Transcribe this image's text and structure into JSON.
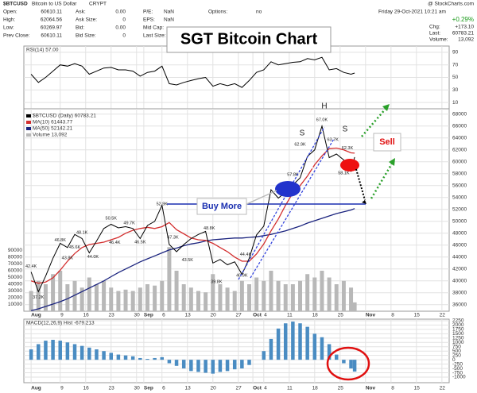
{
  "header": {
    "symbol": "$BTCUSD",
    "name": "Bitcoin to US Dollar",
    "exchange": "CRYPT",
    "copyright": "@ StockCharts.com",
    "date": "Friday 29-Oct-2021 10:21 am",
    "open_label": "Open:",
    "open": "60610.11",
    "high_label": "High:",
    "high": "62064.56",
    "low_label": "Low:",
    "low": "60269.97",
    "prev_label": "Prev Close:",
    "prev": "60610.11",
    "ask_label": "Ask:",
    "ask": "0.00",
    "asksize_label": "Ask Size:",
    "asksize": "0",
    "bid_label": "Bid:",
    "bid": "0.00",
    "bidsize_label": "Bid Size:",
    "bidsize": "0",
    "pe_label": "P/E:",
    "pe": "NaN",
    "eps_label": "EPS:",
    "eps": "NaN",
    "midcap_label": "Mid Cap:",
    "lastsize_label": "Last Size:",
    "options_label": "Options:",
    "options": "no",
    "pct": "+0.29%",
    "chg_label": "Chg:",
    "chg": "+173.10",
    "last_label": "Last:",
    "last": "60783.21",
    "volume_label": "Volume:",
    "volume": "13,092"
  },
  "annotations": {
    "title": "SGT Bitcoin Chart",
    "buy": "Buy More",
    "sell": "Sell",
    "head": "H",
    "shoulder_left": "S",
    "shoulder_right": "S"
  },
  "chart_data": {
    "type": "stock",
    "grid": true,
    "xlim": [
      "2021-07-30",
      "2021-11-24"
    ],
    "xticks": [
      {
        "value": "2021-08-01",
        "label": "Aug"
      },
      {
        "value": "2021-08-09",
        "label": "9"
      },
      {
        "value": "2021-08-16",
        "label": "16"
      },
      {
        "value": "2021-08-23",
        "label": "23"
      },
      {
        "value": "2021-08-30",
        "label": "30"
      },
      {
        "value": "2021-09-01",
        "label": "Sep"
      },
      {
        "value": "2021-09-06",
        "label": "6"
      },
      {
        "value": "2021-09-13",
        "label": "13"
      },
      {
        "value": "2021-09-20",
        "label": "20"
      },
      {
        "value": "2021-09-27",
        "label": "27"
      },
      {
        "value": "2021-10-01",
        "label": "Oct"
      },
      {
        "value": "2021-10-04",
        "label": "4"
      },
      {
        "value": "2021-10-11",
        "label": "11"
      },
      {
        "value": "2021-10-18",
        "label": "18"
      },
      {
        "value": "2021-10-25",
        "label": "25"
      },
      {
        "value": "2021-11-01",
        "label": "Nov"
      },
      {
        "value": "2021-11-08",
        "label": "8"
      },
      {
        "value": "2021-11-15",
        "label": "15"
      },
      {
        "value": "2021-11-22",
        "label": "22"
      }
    ],
    "x": [
      "2021-08-01",
      "2021-08-03",
      "2021-08-05",
      "2021-08-07",
      "2021-08-09",
      "2021-08-11",
      "2021-08-13",
      "2021-08-15",
      "2021-08-17",
      "2021-08-19",
      "2021-08-21",
      "2021-08-23",
      "2021-08-25",
      "2021-08-27",
      "2021-08-29",
      "2021-08-31",
      "2021-09-02",
      "2021-09-04",
      "2021-09-06",
      "2021-09-08",
      "2021-09-10",
      "2021-09-12",
      "2021-09-14",
      "2021-09-16",
      "2021-09-18",
      "2021-09-20",
      "2021-09-22",
      "2021-09-24",
      "2021-09-26",
      "2021-09-28",
      "2021-09-30",
      "2021-10-02",
      "2021-10-04",
      "2021-10-06",
      "2021-10-08",
      "2021-10-10",
      "2021-10-12",
      "2021-10-14",
      "2021-10-16",
      "2021-10-18",
      "2021-10-20",
      "2021-10-22",
      "2021-10-24",
      "2021-10-26",
      "2021-10-28",
      "2021-10-29"
    ],
    "rsi": {
      "title": "RSI(14) 57.00",
      "color": "#000000",
      "ylim": [
        0,
        100
      ],
      "yticks": [
        10,
        30,
        50,
        70,
        90
      ],
      "values": [
        55,
        42,
        50,
        60,
        70,
        68,
        72,
        68,
        55,
        60,
        65,
        66,
        62,
        62,
        60,
        52,
        58,
        60,
        68,
        40,
        38,
        42,
        45,
        48,
        50,
        36,
        40,
        37,
        40,
        34,
        45,
        58,
        62,
        75,
        70,
        72,
        74,
        75,
        80,
        78,
        82,
        62,
        64,
        58,
        55,
        57
      ]
    },
    "price": {
      "ylim": [
        34900,
        68900
      ],
      "yticks": [
        36000,
        38000,
        40000,
        42000,
        44000,
        46000,
        48000,
        50000,
        52000,
        54000,
        56000,
        58000,
        60000,
        62000,
        64000,
        66000,
        68000
      ],
      "y2lim": [
        0,
        300000
      ],
      "y2ticks": [
        10000,
        20000,
        30000,
        40000,
        50000,
        60000,
        70000,
        80000,
        90000
      ],
      "series": [
        {
          "name": "Volume 13,092",
          "color": "#b8b8b8",
          "axis": "y2",
          "values": [
            30000,
            45000,
            40000,
            55000,
            60000,
            40000,
            45000,
            35000,
            50000,
            40000,
            45000,
            35000,
            30000,
            32000,
            30000,
            35000,
            40000,
            38000,
            45000,
            95000,
            60000,
            40000,
            35000,
            30000,
            28000,
            55000,
            40000,
            35000,
            30000,
            45000,
            40000,
            50000,
            45000,
            60000,
            45000,
            40000,
            40000,
            45000,
            55000,
            50000,
            60000,
            50000,
            40000,
            45000,
            35000,
            13092
          ]
        },
        {
          "name": "MA(50) 52142.21",
          "color": "#1a237e",
          "values": [
            35000,
            35300,
            35700,
            36100,
            36500,
            37000,
            37600,
            38200,
            38800,
            39400,
            40000,
            40700,
            41400,
            42000,
            42600,
            43200,
            43700,
            44200,
            44700,
            45200,
            45500,
            45900,
            46200,
            46400,
            46700,
            46900,
            47000,
            47100,
            47200,
            47200,
            47300,
            47400,
            47600,
            47800,
            48100,
            48400,
            48800,
            49200,
            49700,
            50100,
            50500,
            50900,
            51300,
            51600,
            51900,
            52142.21
          ]
        },
        {
          "name": "MA(10) 61443.77",
          "color": "#d32f2f",
          "values": [
            40000,
            39600,
            39800,
            40500,
            41800,
            43300,
            44600,
            45600,
            46100,
            46300,
            46500,
            46900,
            47300,
            48000,
            48500,
            48800,
            49000,
            48800,
            49100,
            49800,
            48600,
            47900,
            47200,
            46900,
            46800,
            46300,
            45600,
            44900,
            44000,
            43300,
            43300,
            44500,
            46200,
            48400,
            50400,
            52700,
            54800,
            56000,
            57600,
            59500,
            61000,
            62200,
            62300,
            62000,
            61500,
            61443.77
          ]
        },
        {
          "name": "$BTCUSD (Daily) 60783.21",
          "color": "#000000",
          "values": [
            41500,
            38200,
            40800,
            43800,
            46300,
            45600,
            47800,
            47100,
            44700,
            46700,
            48800,
            49500,
            48900,
            49100,
            48800,
            47100,
            49300,
            50000,
            52700,
            46100,
            44900,
            46100,
            47100,
            47800,
            48300,
            43000,
            43600,
            42700,
            43200,
            41100,
            43800,
            47700,
            49200,
            55300,
            53900,
            54900,
            56100,
            57300,
            60900,
            62000,
            66000,
            60700,
            61300,
            60300,
            58400,
            60783.21
          ]
        }
      ],
      "value_labels": [
        {
          "x": "2021-08-03",
          "value": 37200,
          "label": "37.2K"
        },
        {
          "x": "2021-08-01",
          "value": 42400,
          "label": "42.4K"
        },
        {
          "x": "2021-08-11",
          "value": 43800,
          "label": "43.8K"
        },
        {
          "x": "2021-08-09",
          "value": 46800,
          "label": "46.8K"
        },
        {
          "x": "2021-08-13",
          "value": 45600,
          "label": "45.6K"
        },
        {
          "x": "2021-08-15",
          "value": 48100,
          "label": "48.1K"
        },
        {
          "x": "2021-08-18",
          "value": 44000,
          "label": "44.0K"
        },
        {
          "x": "2021-08-23",
          "value": 50500,
          "label": "50.5K"
        },
        {
          "x": "2021-08-24",
          "value": 46400,
          "label": "46.4K"
        },
        {
          "x": "2021-08-28",
          "value": 49700,
          "label": "49.7K"
        },
        {
          "x": "2021-08-31",
          "value": 46500,
          "label": "46.5K"
        },
        {
          "x": "2021-09-06",
          "value": 52900,
          "label": "52.9K"
        },
        {
          "x": "2021-09-09",
          "value": 47300,
          "label": "47.3K"
        },
        {
          "x": "2021-09-13",
          "value": 43500,
          "label": "43.5K"
        },
        {
          "x": "2021-09-19",
          "value": 48800,
          "label": "48.8K"
        },
        {
          "x": "2021-09-21",
          "value": 39800,
          "label": "39.8K"
        },
        {
          "x": "2021-09-29",
          "value": 44400,
          "label": "44.4K"
        },
        {
          "x": "2021-09-28",
          "value": 40900,
          "label": "40.9K"
        },
        {
          "x": "2021-10-12",
          "value": 57800,
          "label": "57.8K"
        },
        {
          "x": "2021-10-14",
          "value": 62900,
          "label": "62.9K"
        },
        {
          "x": "2021-10-20",
          "value": 67000,
          "label": "67.0K"
        },
        {
          "x": "2021-10-23",
          "value": 63700,
          "label": "63.7K"
        },
        {
          "x": "2021-10-27",
          "value": 62300,
          "label": "62.3K"
        },
        {
          "x": "2021-10-26",
          "value": 58100,
          "label": "58.1K"
        }
      ]
    },
    "macd": {
      "title": "MACD(12,26,9) Hist -679.213",
      "color": "#4a8cc2",
      "ylim": [
        -1320,
        2340
      ],
      "yticks": [
        -1000,
        -750,
        -500,
        -250,
        0,
        250,
        500,
        750,
        1000,
        1250,
        1500,
        1750,
        2000,
        2250
      ],
      "values": [
        600,
        900,
        1100,
        1150,
        1100,
        1000,
        900,
        800,
        700,
        600,
        500,
        400,
        300,
        250,
        200,
        100,
        50,
        100,
        150,
        -200,
        -350,
        -500,
        -650,
        -700,
        -750,
        -800,
        -700,
        -650,
        -550,
        -500,
        -300,
        0,
        500,
        1200,
        1800,
        2100,
        2200,
        2100,
        1900,
        1500,
        1300,
        900,
        300,
        -200,
        -500,
        -679.213
      ]
    }
  }
}
